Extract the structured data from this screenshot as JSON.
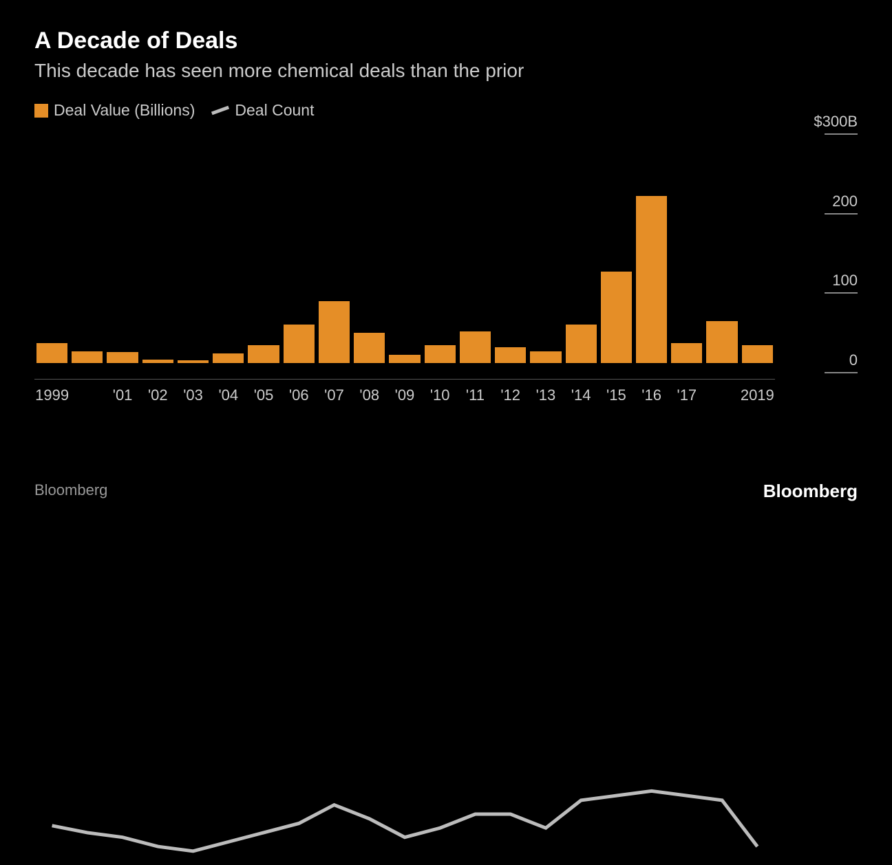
{
  "title": "A Decade of Deals",
  "subtitle": "This decade has seen more chemical deals than the prior",
  "legend": {
    "bar_label": "Deal Value (Billions)",
    "line_label": "Deal Count"
  },
  "source": "Bloomberg",
  "brand": "Bloomberg",
  "chart": {
    "type": "bar_with_line",
    "background_color": "#000000",
    "bar_color": "#e58e27",
    "line_color": "#bcbcbc",
    "line_width": 5,
    "text_color": "#cccccc",
    "tick_line_color": "#888888",
    "axis_line_color": "#555555",
    "ylim": [
      -20,
      300
    ],
    "y_ticks": [
      {
        "value": 300,
        "label": "$300B"
      },
      {
        "value": 200,
        "label": "200"
      },
      {
        "value": 100,
        "label": "100"
      },
      {
        "value": 0,
        "label": "0"
      }
    ],
    "x_labels": [
      "1999",
      "",
      "'01",
      "'02",
      "'03",
      "'04",
      "'05",
      "'06",
      "'07",
      "'08",
      "'09",
      "'10",
      "'11",
      "'12",
      "'13",
      "'14",
      "'15",
      "'16",
      "'17",
      "",
      "2019"
    ],
    "bar_values": [
      25,
      15,
      14,
      4,
      3,
      12,
      22,
      48,
      78,
      38,
      10,
      22,
      40,
      20,
      15,
      48,
      115,
      210,
      25,
      53,
      22
    ],
    "line_values": [
      -3,
      -6,
      -8,
      -12,
      -14,
      -10,
      -6,
      -2,
      6,
      0,
      -8,
      -4,
      2,
      2,
      -4,
      8,
      10,
      12,
      10,
      8,
      -12
    ]
  }
}
